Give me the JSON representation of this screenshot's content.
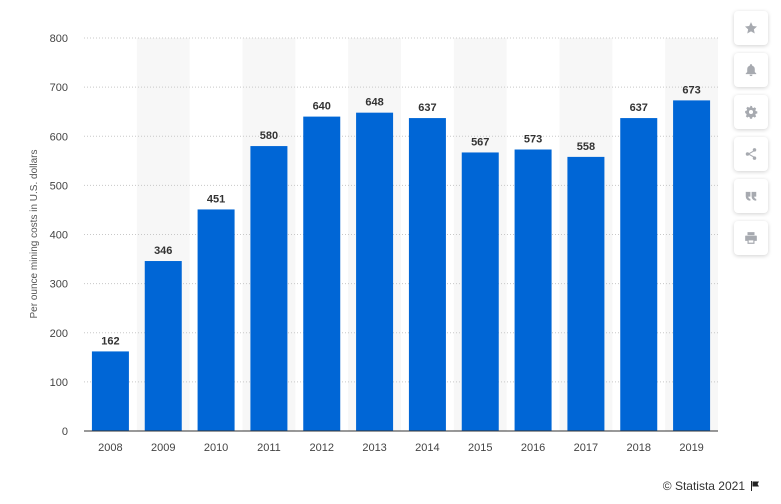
{
  "chart_data": {
    "type": "bar",
    "categories": [
      "2008",
      "2009",
      "2010",
      "2011",
      "2012",
      "2013",
      "2014",
      "2015",
      "2016",
      "2017",
      "2018",
      "2019"
    ],
    "values": [
      162,
      346,
      451,
      580,
      640,
      648,
      637,
      567,
      573,
      558,
      637,
      673
    ],
    "title": "",
    "xlabel": "",
    "ylabel": "Per ounce mining costs in U.S. dollars",
    "ylim": [
      0,
      800
    ],
    "yticks": [
      0,
      100,
      200,
      300,
      400,
      500,
      600,
      700,
      800
    ],
    "grid": true,
    "bar_color": "#0066d6",
    "band_color": "#f7f7f7"
  },
  "toolbar": {
    "items": [
      {
        "icon": "star-icon"
      },
      {
        "icon": "bell-icon"
      },
      {
        "icon": "gear-icon"
      },
      {
        "icon": "share-icon"
      },
      {
        "icon": "quote-icon"
      },
      {
        "icon": "print-icon"
      }
    ]
  },
  "credit": {
    "text": "© Statista 2021",
    "icon": "flag-icon"
  }
}
